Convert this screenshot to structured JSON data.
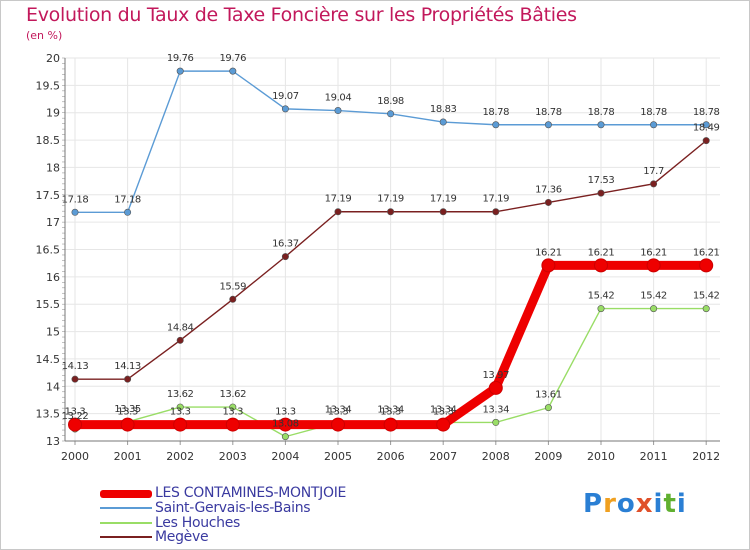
{
  "header": {
    "title": "Evolution du Taux de Taxe Foncière sur les Propriétés Bâties",
    "subtitle": "(en %)"
  },
  "logo": {
    "text": "Proxiti",
    "letters": [
      "P",
      "r",
      "o",
      "x",
      "i",
      "t",
      "i"
    ],
    "colors": [
      "#2a7fd4",
      "#f0a020",
      "#2a7fd4",
      "#e0502a",
      "#2a7fd4",
      "#60b030",
      "#2a7fd4"
    ]
  },
  "chart_data": {
    "type": "line",
    "categories": [
      "2000",
      "2001",
      "2002",
      "2003",
      "2004",
      "2005",
      "2006",
      "2007",
      "2008",
      "2009",
      "2010",
      "2011",
      "2012"
    ],
    "ylim": [
      13,
      20
    ],
    "yticks": [
      "13",
      "13.5",
      "14",
      "14.5",
      "15",
      "15.5",
      "16",
      "16.5",
      "17",
      "17.5",
      "18",
      "18.5",
      "19",
      "19.5",
      "20"
    ],
    "grid": true,
    "legend_position": "bottom-left",
    "series": [
      {
        "name": "LES CONTAMINES-MONTJOIE",
        "color": "#ee0000",
        "values": [
          13.3,
          13.3,
          13.3,
          13.3,
          13.3,
          13.3,
          13.3,
          13.3,
          13.97,
          16.21,
          16.21,
          16.21,
          16.21
        ],
        "labels": [
          "13.3",
          "13.3",
          "13.3",
          "13.3",
          "13.3",
          "13.3",
          "13.3",
          "13.3",
          "13.97",
          "16.21",
          "16.21",
          "16.21",
          "16.21"
        ]
      },
      {
        "name": "Saint-Gervais-les-Bains",
        "color": "#5b9bd5",
        "values": [
          17.18,
          17.18,
          19.76,
          19.76,
          19.07,
          19.04,
          18.98,
          18.83,
          18.78,
          18.78,
          18.78,
          18.78,
          18.78
        ],
        "labels": [
          "17.18",
          "17.18",
          "19.76",
          "19.76",
          "19.07",
          "19.04",
          "18.98",
          "18.83",
          "18.78",
          "18.78",
          "18.78",
          "18.78",
          "18.78"
        ]
      },
      {
        "name": "Les Houches",
        "color": "#99dd66",
        "values": [
          13.22,
          13.35,
          13.62,
          13.62,
          13.08,
          13.34,
          13.34,
          13.34,
          13.34,
          13.61,
          15.42,
          15.42,
          15.42
        ],
        "labels": [
          "13.22",
          "13.35",
          "13.62",
          "13.62",
          "13.08",
          "13.34",
          "13.34",
          "13.34",
          "13.34",
          "13.61",
          "15.42",
          "15.42",
          "15.42"
        ]
      },
      {
        "name": "Megève",
        "color": "#7a2020",
        "values": [
          14.13,
          14.13,
          14.84,
          15.59,
          16.37,
          17.19,
          17.19,
          17.19,
          17.19,
          17.36,
          17.53,
          17.7,
          18.49
        ],
        "labels": [
          "14.13",
          "14.13",
          "14.84",
          "15.59",
          "16.37",
          "17.19",
          "17.19",
          "17.19",
          "17.19",
          "17.36",
          "17.53",
          "17.7",
          "18.49"
        ]
      }
    ]
  }
}
